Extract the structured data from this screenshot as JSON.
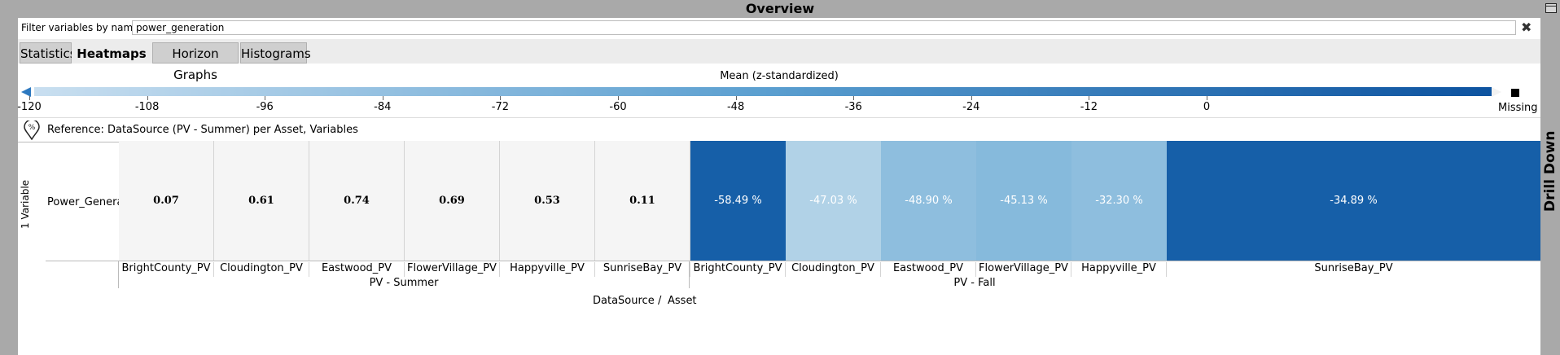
{
  "window": {
    "title": "Overview"
  },
  "filter": {
    "label": "Filter variables by name:",
    "value": "power_generation",
    "clear_icon": "close-icon"
  },
  "tabs": [
    {
      "label": "Statistics",
      "active": false
    },
    {
      "label": "Heatmaps",
      "active": true
    },
    {
      "label": "Horizon Graphs",
      "active": false
    },
    {
      "label": "Histograms",
      "active": false
    }
  ],
  "legend": {
    "title": "Mean (z-standardized)",
    "ticks": [
      "-120",
      "-108",
      "-96",
      "-84",
      "-72",
      "-60",
      "-48",
      "-36",
      "-24",
      "-12",
      "0"
    ],
    "missing_label": "Missing",
    "gradient_colors": [
      "#c9dff0",
      "#5b9fd0",
      "#0d53a0"
    ]
  },
  "reference": {
    "icon": "percent-pin-icon",
    "text": "Reference: DataSource (PV - Summer) per Asset, Variables"
  },
  "heatmap": {
    "y_axis_label": "1 Variable",
    "row_label": "Power_Generation",
    "reference_cells": [
      {
        "col": "BrightCounty_PV",
        "value": "0.07"
      },
      {
        "col": "Cloudington_PV",
        "value": "0.61"
      },
      {
        "col": "Eastwood_PV",
        "value": "0.74"
      },
      {
        "col": "FlowerVillage_PV",
        "value": "0.69"
      },
      {
        "col": "Happyville_PV",
        "value": "0.53"
      },
      {
        "col": "SunriseBay_PV",
        "value": "0.11"
      }
    ],
    "value_cells": [
      {
        "col": "BrightCounty_PV",
        "value": "-58.49 %",
        "color": "#165fa8"
      },
      {
        "col": "Cloudington_PV",
        "value": "-47.03 %",
        "color": "#b1d2e7"
      },
      {
        "col": "Eastwood_PV",
        "value": "-48.90 %",
        "color": "#8ebede"
      },
      {
        "col": "FlowerVillage_PV",
        "value": "-45.13 %",
        "color": "#86badc"
      },
      {
        "col": "Happyville_PV",
        "value": "-32.30 %",
        "color": "#8ebede"
      },
      {
        "col": "SunriseBay_PV",
        "value": "-34.89 %",
        "color": "#165fa8"
      }
    ],
    "groups": [
      "PV - Summer",
      "PV - Fall"
    ],
    "footer": {
      "left": "DataSource",
      "sep": "/",
      "right": "Asset"
    }
  },
  "drill_down": {
    "label": "Drill Down"
  }
}
